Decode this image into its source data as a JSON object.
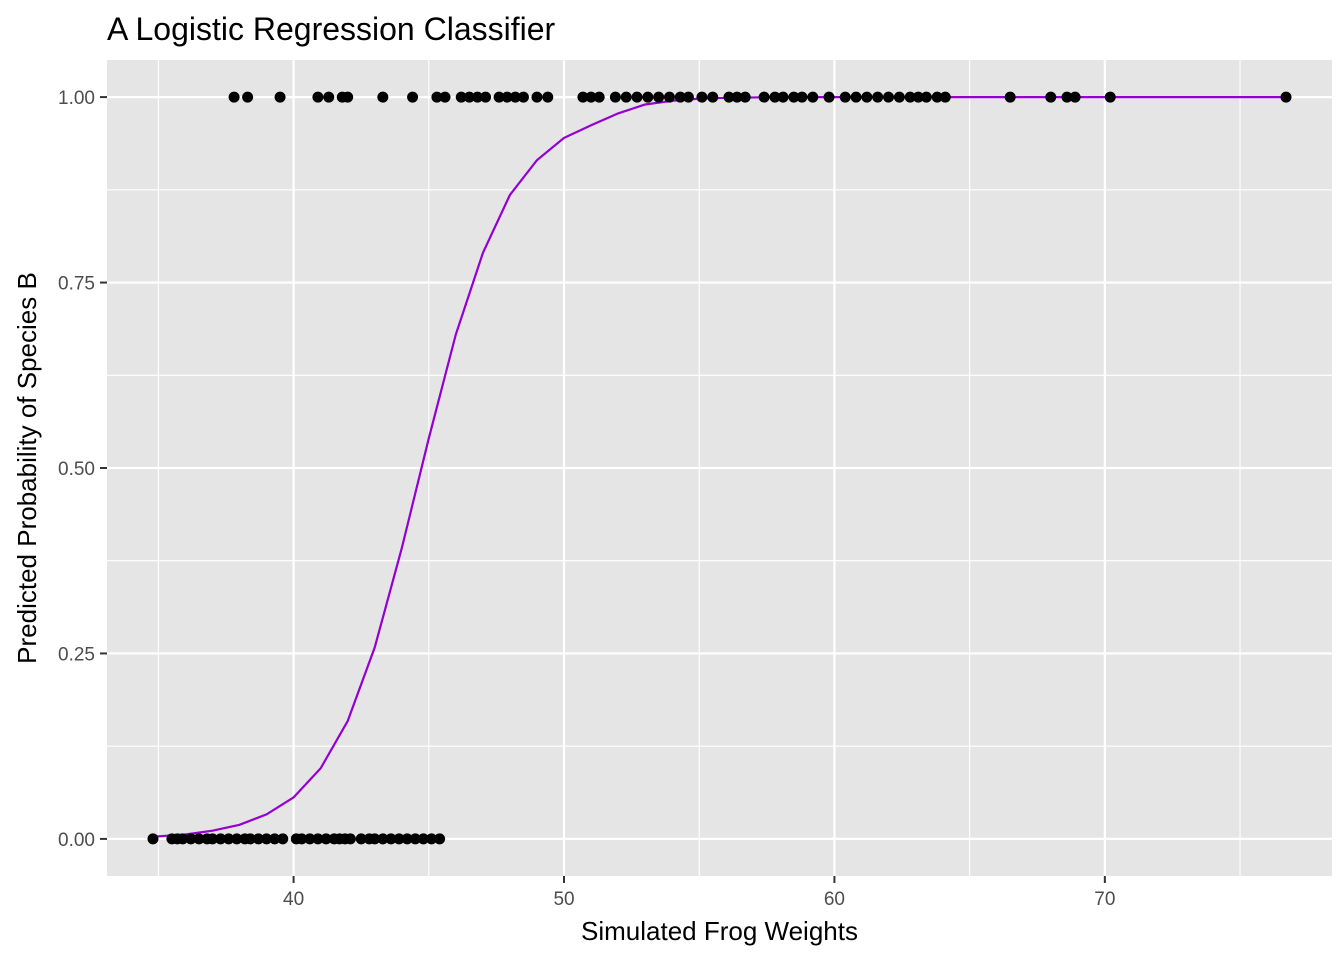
{
  "chart_data": {
    "type": "scatter",
    "title": "A Logistic Regression Classifier",
    "xlabel": "Simulated Frog Weights",
    "ylabel": "Predicted Probability of Species B",
    "xlim": [
      33.1,
      78.4
    ],
    "ylim": [
      -0.05,
      1.05
    ],
    "x_ticks": [
      40,
      50,
      60,
      70
    ],
    "x_minor_ticks": [
      35,
      45,
      55,
      65,
      75
    ],
    "y_ticks": [
      0.0,
      0.25,
      0.5,
      0.75,
      1.0
    ],
    "y_tick_labels": [
      "0.00",
      "0.25",
      "0.50",
      "0.75",
      "1.00"
    ],
    "y_minor_ticks": [
      0.125,
      0.375,
      0.625,
      0.875
    ],
    "grid": true,
    "colors": {
      "panel": "#e5e5e5",
      "grid": "#ffffff",
      "points": "#000000",
      "curve": "#9400d3",
      "ticks": "#4d4d4d"
    },
    "series": [
      {
        "type": "scatter",
        "points": [
          [
            34.8,
            0
          ],
          [
            35.5,
            0
          ],
          [
            35.7,
            0
          ],
          [
            35.9,
            0
          ],
          [
            36.2,
            0
          ],
          [
            36.5,
            0
          ],
          [
            36.8,
            0
          ],
          [
            37.0,
            0
          ],
          [
            37.3,
            0
          ],
          [
            37.6,
            0
          ],
          [
            37.9,
            0
          ],
          [
            38.2,
            0
          ],
          [
            38.4,
            0
          ],
          [
            38.7,
            0
          ],
          [
            39.0,
            0
          ],
          [
            39.3,
            0
          ],
          [
            39.6,
            0
          ],
          [
            40.1,
            0
          ],
          [
            40.3,
            0
          ],
          [
            40.6,
            0
          ],
          [
            40.9,
            0
          ],
          [
            41.2,
            0
          ],
          [
            41.5,
            0
          ],
          [
            41.7,
            0
          ],
          [
            41.9,
            0
          ],
          [
            42.1,
            0
          ],
          [
            42.5,
            0
          ],
          [
            42.8,
            0
          ],
          [
            43.0,
            0
          ],
          [
            43.3,
            0
          ],
          [
            43.6,
            0
          ],
          [
            43.9,
            0
          ],
          [
            44.2,
            0
          ],
          [
            44.5,
            0
          ],
          [
            44.8,
            0
          ],
          [
            45.1,
            0
          ],
          [
            45.4,
            0
          ],
          [
            37.8,
            1
          ],
          [
            38.3,
            1
          ],
          [
            39.5,
            1
          ],
          [
            40.9,
            1
          ],
          [
            41.3,
            1
          ],
          [
            41.8,
            1
          ],
          [
            42.0,
            1
          ],
          [
            43.3,
            1
          ],
          [
            44.4,
            1
          ],
          [
            45.3,
            1
          ],
          [
            45.6,
            1
          ],
          [
            46.2,
            1
          ],
          [
            46.5,
            1
          ],
          [
            46.8,
            1
          ],
          [
            47.1,
            1
          ],
          [
            47.6,
            1
          ],
          [
            47.9,
            1
          ],
          [
            48.2,
            1
          ],
          [
            48.5,
            1
          ],
          [
            49.0,
            1
          ],
          [
            49.4,
            1
          ],
          [
            50.7,
            1
          ],
          [
            51.0,
            1
          ],
          [
            51.3,
            1
          ],
          [
            51.9,
            1
          ],
          [
            52.3,
            1
          ],
          [
            52.7,
            1
          ],
          [
            53.1,
            1
          ],
          [
            53.5,
            1
          ],
          [
            53.9,
            1
          ],
          [
            54.3,
            1
          ],
          [
            54.6,
            1
          ],
          [
            55.1,
            1
          ],
          [
            55.5,
            1
          ],
          [
            56.1,
            1
          ],
          [
            56.4,
            1
          ],
          [
            56.7,
            1
          ],
          [
            57.4,
            1
          ],
          [
            57.8,
            1
          ],
          [
            58.1,
            1
          ],
          [
            58.5,
            1
          ],
          [
            58.8,
            1
          ],
          [
            59.2,
            1
          ],
          [
            59.8,
            1
          ],
          [
            60.4,
            1
          ],
          [
            60.8,
            1
          ],
          [
            61.2,
            1
          ],
          [
            61.6,
            1
          ],
          [
            62.0,
            1
          ],
          [
            62.4,
            1
          ],
          [
            62.8,
            1
          ],
          [
            63.1,
            1
          ],
          [
            63.4,
            1
          ],
          [
            63.8,
            1
          ],
          [
            64.1,
            1
          ],
          [
            66.5,
            1
          ],
          [
            68.0,
            1
          ],
          [
            68.6,
            1
          ],
          [
            68.9,
            1
          ],
          [
            70.2,
            1
          ],
          [
            76.7,
            1
          ]
        ]
      },
      {
        "type": "line",
        "points": [
          [
            34.8,
            0.003
          ],
          [
            36,
            0.006
          ],
          [
            37,
            0.011
          ],
          [
            38,
            0.019
          ],
          [
            39,
            0.033
          ],
          [
            40,
            0.056
          ],
          [
            41,
            0.095
          ],
          [
            42,
            0.159
          ],
          [
            43,
            0.258
          ],
          [
            44,
            0.392
          ],
          [
            45,
            0.54
          ],
          [
            46,
            0.68
          ],
          [
            47,
            0.79
          ],
          [
            48,
            0.868
          ],
          [
            49,
            0.915
          ],
          [
            50,
            0.945
          ],
          [
            51,
            0.962
          ],
          [
            52,
            0.978
          ],
          [
            53,
            0.99
          ],
          [
            54,
            0.995
          ],
          [
            55,
            0.998
          ],
          [
            56,
            0.999
          ],
          [
            58,
            1.0
          ],
          [
            60,
            1.0
          ],
          [
            65,
            1.0
          ],
          [
            70,
            1.0
          ],
          [
            76.7,
            1.0
          ]
        ]
      }
    ]
  }
}
